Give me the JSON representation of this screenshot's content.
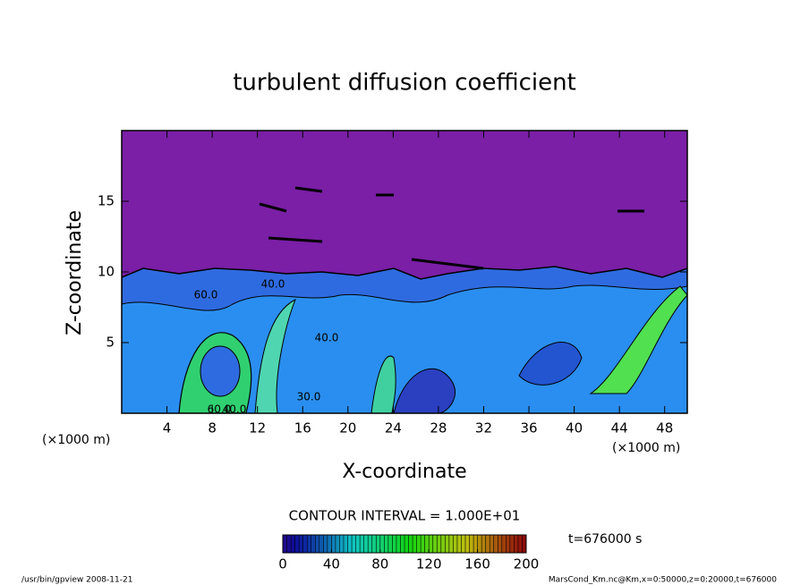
{
  "chart_data": {
    "type": "contour",
    "title": "turbulent diffusion coefficient",
    "x_label": "X-coordinate",
    "y_label": "Z-coordinate",
    "x_unit": "(×1000 m)",
    "y_unit": "(×1000 m)",
    "xlim": [
      0,
      50
    ],
    "xticks": [
      4,
      8,
      12,
      16,
      20,
      24,
      28,
      32,
      36,
      40,
      44,
      48
    ],
    "ylim": [
      0,
      20
    ],
    "yticks": [
      5,
      10,
      15
    ],
    "contour_labels": [
      "60.0",
      "40.0",
      "40.0",
      "60.0",
      "30.0",
      "40.0"
    ],
    "contour_interval": "CONTOUR INTERVAL = 1.000E+01",
    "time_label": "t=676000 s",
    "colorbar": {
      "lim": [
        0,
        200
      ],
      "ticks": [
        0,
        40,
        80,
        120,
        160,
        200
      ]
    },
    "footer_left": "/usr/bin/gpview  2008-11-21",
    "footer_right": "MarsCond_Km.nc@Km,x=0:50000,z=0:20000,t=676000"
  }
}
